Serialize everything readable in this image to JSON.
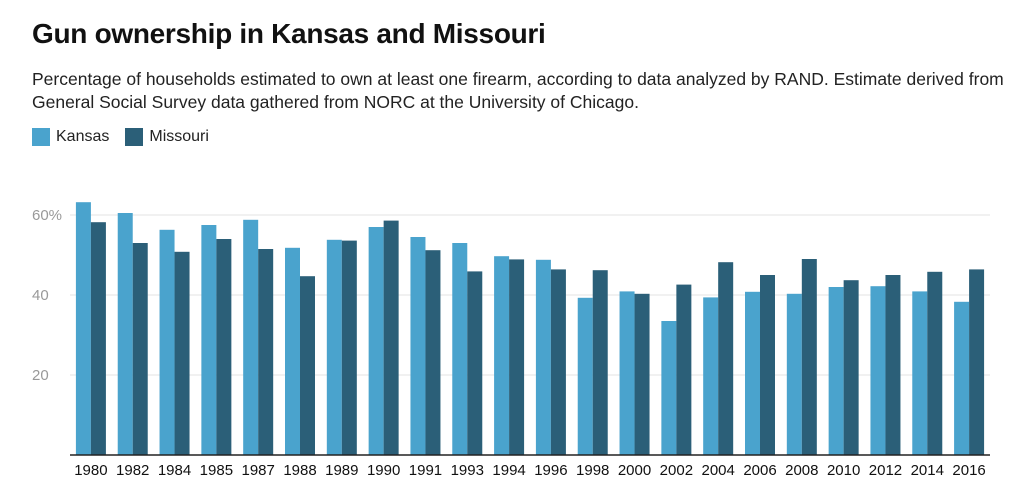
{
  "chart_data": {
    "type": "bar",
    "title": "Gun ownership in Kansas and Missouri",
    "subtitle": "Percentage of households estimated to own at least one firearm, according to data analyzed by RAND. Estimate derived from General Social Survey data gathered from NORC at the University of Chicago.",
    "categories": [
      "1980",
      "1982",
      "1984",
      "1985",
      "1987",
      "1988",
      "1989",
      "1990",
      "1991",
      "1993",
      "1994",
      "1996",
      "1998",
      "2000",
      "2002",
      "2004",
      "2006",
      "2008",
      "2010",
      "2012",
      "2014",
      "2016"
    ],
    "series": [
      {
        "name": "Kansas",
        "color": "#4aa3cd",
        "values": [
          63.2,
          60.5,
          56.3,
          57.5,
          58.8,
          51.8,
          53.8,
          57.0,
          54.5,
          53.0,
          49.7,
          48.8,
          39.3,
          40.9,
          33.5,
          39.4,
          40.8,
          40.3,
          42.0,
          42.2,
          40.9,
          38.3
        ]
      },
      {
        "name": "Missouri",
        "color": "#2b5f78",
        "values": [
          58.2,
          53.0,
          50.8,
          54.0,
          51.5,
          44.7,
          53.6,
          58.6,
          51.2,
          45.9,
          48.9,
          46.4,
          46.2,
          40.3,
          42.6,
          48.2,
          45.0,
          49.0,
          43.7,
          45.0,
          45.8,
          46.4
        ]
      }
    ],
    "yticks": [
      {
        "value": 20,
        "label": "20"
      },
      {
        "value": 40,
        "label": "40"
      },
      {
        "value": 60,
        "label": "60%"
      }
    ],
    "ylim": [
      0,
      65
    ],
    "grid": true,
    "legend_position": "top-left"
  }
}
